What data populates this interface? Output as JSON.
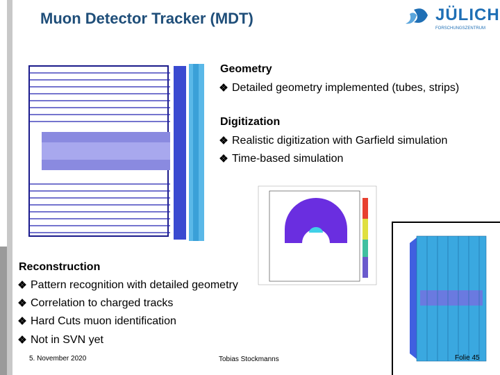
{
  "header": {
    "title": "Muon Detector Tracker (MDT)",
    "logo": {
      "name": "JÜLICH",
      "subtitle": "FORSCHUNGSZENTRUM"
    }
  },
  "sections": [
    {
      "heading": "Geometry",
      "bullets": [
        "Detailed geometry implemented (tubes, strips)"
      ]
    },
    {
      "heading": "Digitization",
      "bullets": [
        "Realistic digitization with Garfield simulation",
        "Time-based simulation"
      ]
    },
    {
      "heading": "Reconstruction",
      "bullets": [
        "Pattern recognition with detailed geometry",
        "Correlation to charged tracks",
        "Hard Cuts muon identification",
        "Not in SVN yet"
      ]
    }
  ],
  "footer": {
    "date": "5. November 2020",
    "author": "Tobias Stockmanns",
    "slide": "Folie 45"
  }
}
